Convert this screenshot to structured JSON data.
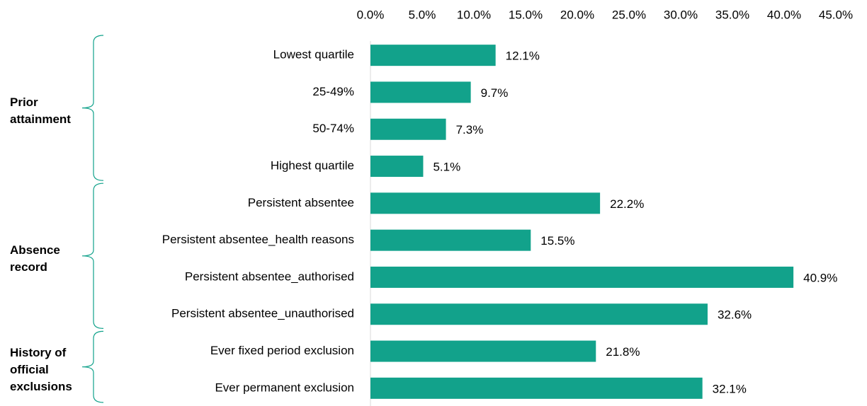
{
  "chart_data": {
    "type": "bar",
    "orientation": "horizontal",
    "color": "#12a28b",
    "xlim": [
      0,
      45
    ],
    "xticks": [
      {
        "value": 0,
        "label": "0.0%"
      },
      {
        "value": 5,
        "label": "5.0%"
      },
      {
        "value": 10,
        "label": "10.0%"
      },
      {
        "value": 15,
        "label": "15.0%"
      },
      {
        "value": 20,
        "label": "20.0%"
      },
      {
        "value": 25,
        "label": "25.0%"
      },
      {
        "value": 30,
        "label": "30.0%"
      },
      {
        "value": 35,
        "label": "35.0%"
      },
      {
        "value": 40,
        "label": "40.0%"
      },
      {
        "value": 45,
        "label": "45.0%"
      }
    ],
    "groups": [
      {
        "name": "Prior attainment",
        "categories": [
          "Lowest quartile",
          "25-49%",
          "50-74%",
          "Highest quartile"
        ],
        "values": [
          12.1,
          9.7,
          7.3,
          5.1
        ],
        "value_labels": [
          "12.1%",
          "9.7%",
          "7.3%",
          "5.1%"
        ]
      },
      {
        "name": "Absence record",
        "categories": [
          "Persistent absentee",
          "Persistent absentee_health reasons",
          "Persistent absentee_authorised",
          "Persistent absentee_unauthorised"
        ],
        "values": [
          22.2,
          15.5,
          40.9,
          32.6
        ],
        "value_labels": [
          "22.2%",
          "15.5%",
          "40.9%",
          "32.6%"
        ]
      },
      {
        "name": "History of official exclusions",
        "categories": [
          "Ever fixed period exclusion",
          "Ever permanent exclusion"
        ],
        "values": [
          21.8,
          32.1
        ],
        "value_labels": [
          "21.8%",
          "32.1%"
        ]
      }
    ]
  }
}
